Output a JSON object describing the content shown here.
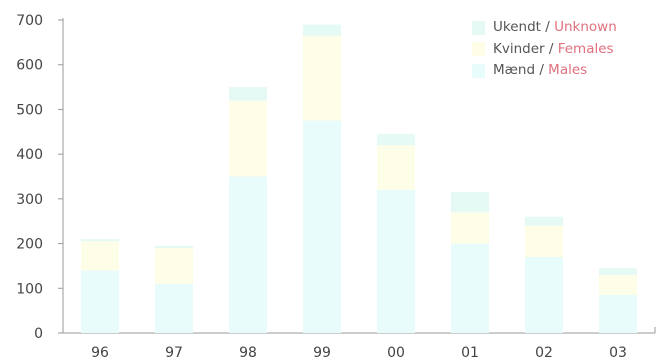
{
  "chart_data": {
    "type": "bar",
    "stacked": true,
    "categories": [
      "96",
      "97",
      "98",
      "99",
      "00",
      "01",
      "02",
      "03"
    ],
    "series": [
      {
        "name": "Mænd / Males",
        "name_da": "Mænd",
        "name_en": "Males",
        "color": "#e9fcfc",
        "values": [
          140,
          110,
          350,
          475,
          320,
          200,
          170,
          85
        ]
      },
      {
        "name": "Kvinder / Females",
        "name_da": "Kvinder",
        "name_en": "Females",
        "color": "#fdfde8",
        "values": [
          65,
          80,
          170,
          190,
          100,
          70,
          70,
          45
        ]
      },
      {
        "name": "Ukendt / Unknown",
        "name_da": "Ukendt",
        "name_en": "Unknown",
        "color": "#e6faf5",
        "values": [
          5,
          5,
          30,
          25,
          25,
          45,
          20,
          15
        ]
      }
    ],
    "ylim": [
      0,
      700
    ],
    "yticks": [
      0,
      100,
      200,
      300,
      400,
      500,
      600,
      700
    ],
    "grid": false,
    "legend_position": "top-right",
    "title": "",
    "xlabel": "",
    "ylabel": ""
  }
}
